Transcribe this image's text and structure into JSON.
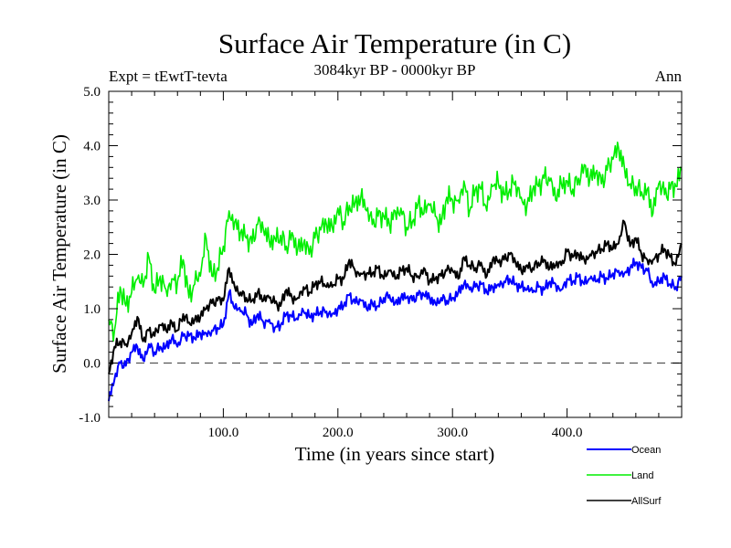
{
  "chart_data": {
    "type": "line",
    "title": "Surface Air Temperature (in C)",
    "subtitle": "3084kyr BP - 0000kyr BP",
    "left_annotation": "Expt = tEwtT-tevta",
    "right_annotation": "Ann",
    "xlabel": "Time (in years since start)",
    "ylabel": "Surface Air Temperature (in C)",
    "xlim": [
      0,
      500
    ],
    "ylim": [
      -1.0,
      5.0
    ],
    "xticks": [
      100,
      200,
      300,
      400
    ],
    "xtick_labels": [
      "100.0",
      "200.0",
      "300.0",
      "400.0"
    ],
    "x_minor_step": 20,
    "yticks": [
      -1,
      0,
      1,
      2,
      3,
      4,
      5
    ],
    "ytick_labels": [
      "-1.0",
      "0.0",
      "1.0",
      "2.0",
      "3.0",
      "4.0",
      "5.0"
    ],
    "y_minor_step": 0.2,
    "reference_line": {
      "y": 0.0,
      "style": "dashed",
      "color": "#555555"
    },
    "grid": false,
    "legend": {
      "placement": "bottom-right"
    },
    "x_start": 0,
    "x_step": 5,
    "series": [
      {
        "name": "Ocean",
        "color": "#0000ff",
        "values": [
          -0.7,
          -0.3,
          0.0,
          -0.05,
          0.2,
          0.3,
          0.05,
          0.35,
          0.2,
          0.3,
          0.3,
          0.45,
          0.3,
          0.5,
          0.5,
          0.45,
          0.55,
          0.55,
          0.6,
          0.65,
          0.7,
          1.3,
          1.0,
          0.95,
          0.9,
          0.7,
          0.9,
          0.75,
          0.8,
          0.65,
          0.7,
          0.9,
          0.85,
          0.8,
          0.95,
          0.85,
          0.9,
          0.95,
          0.95,
          0.9,
          1.0,
          1.05,
          1.25,
          1.1,
          1.15,
          1.0,
          1.1,
          1.05,
          1.2,
          1.25,
          1.1,
          1.2,
          1.2,
          1.15,
          1.25,
          1.25,
          1.2,
          1.1,
          1.2,
          1.15,
          1.2,
          1.3,
          1.45,
          1.35,
          1.4,
          1.45,
          1.3,
          1.4,
          1.45,
          1.5,
          1.55,
          1.45,
          1.4,
          1.35,
          1.3,
          1.4,
          1.35,
          1.5,
          1.45,
          1.35,
          1.55,
          1.5,
          1.6,
          1.45,
          1.55,
          1.5,
          1.6,
          1.55,
          1.65,
          1.7,
          1.65,
          1.75,
          1.85,
          1.75,
          1.7,
          1.4,
          1.5,
          1.6,
          1.45,
          1.4,
          1.6
        ]
      },
      {
        "name": "Land",
        "color": "#00ee00",
        "values": [
          0.8,
          0.6,
          1.4,
          1.05,
          1.3,
          1.55,
          1.4,
          1.95,
          1.3,
          1.6,
          1.35,
          1.55,
          1.5,
          1.9,
          1.2,
          1.45,
          1.6,
          2.3,
          1.6,
          1.75,
          2.15,
          2.8,
          2.6,
          2.4,
          2.3,
          2.2,
          2.55,
          2.45,
          2.25,
          2.3,
          2.35,
          2.15,
          2.4,
          2.1,
          2.2,
          2.0,
          2.3,
          2.45,
          2.55,
          2.5,
          2.85,
          2.6,
          2.9,
          2.95,
          3.05,
          2.8,
          2.55,
          2.7,
          2.7,
          2.55,
          2.8,
          2.85,
          2.5,
          2.6,
          2.95,
          2.75,
          2.9,
          2.7,
          2.55,
          3.05,
          3.0,
          3.0,
          3.35,
          2.8,
          3.2,
          3.2,
          2.8,
          3.25,
          3.3,
          3.1,
          3.2,
          3.35,
          3.05,
          2.9,
          3.2,
          3.25,
          3.4,
          3.35,
          3.0,
          3.3,
          3.35,
          3.2,
          3.4,
          3.65,
          3.4,
          3.5,
          3.3,
          3.55,
          3.75,
          3.95,
          3.6,
          3.3,
          3.25,
          3.15,
          3.2,
          2.75,
          3.3,
          3.1,
          3.2,
          3.25,
          3.55
        ]
      },
      {
        "name": "AllSurf",
        "color": "#000000",
        "values": [
          -0.2,
          0.3,
          0.4,
          0.35,
          0.55,
          0.85,
          0.4,
          0.6,
          0.5,
          0.7,
          0.6,
          0.75,
          0.6,
          0.9,
          0.75,
          0.8,
          0.85,
          1.0,
          1.1,
          1.15,
          1.15,
          1.75,
          1.4,
          1.3,
          1.2,
          1.15,
          1.3,
          1.15,
          1.2,
          1.1,
          1.05,
          1.35,
          1.2,
          1.2,
          1.4,
          1.3,
          1.45,
          1.5,
          1.4,
          1.4,
          1.55,
          1.55,
          1.9,
          1.7,
          1.65,
          1.65,
          1.65,
          1.75,
          1.55,
          1.7,
          1.55,
          1.7,
          1.75,
          1.6,
          1.6,
          1.75,
          1.5,
          1.55,
          1.6,
          1.7,
          1.7,
          1.55,
          1.95,
          1.8,
          1.75,
          1.85,
          1.6,
          1.9,
          1.85,
          1.9,
          2.0,
          1.85,
          1.7,
          1.8,
          1.75,
          1.85,
          1.9,
          1.75,
          1.8,
          1.8,
          2.05,
          1.95,
          2.0,
          1.9,
          2.0,
          2.05,
          2.1,
          2.2,
          2.1,
          2.2,
          2.6,
          2.15,
          2.3,
          2.0,
          1.9,
          1.9,
          2.0,
          2.1,
          1.95,
          1.8,
          2.2
        ]
      }
    ]
  }
}
